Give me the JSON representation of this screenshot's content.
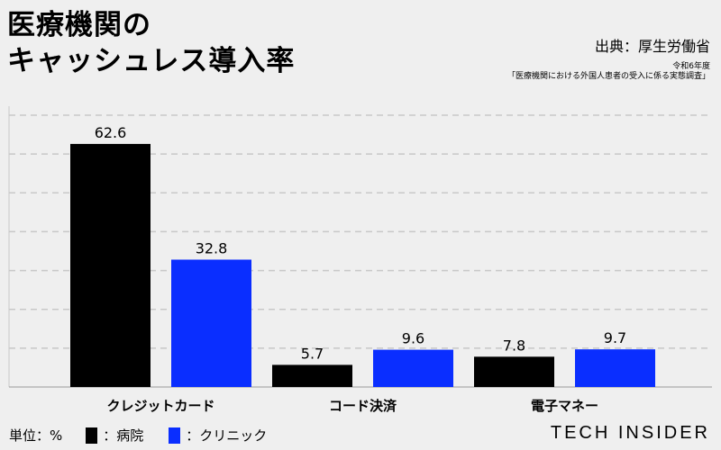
{
  "title_lines": [
    "医療機関の",
    "キャッシュレス導入率"
  ],
  "source": {
    "main": "出典：厚生労働省",
    "year": "令和6年度",
    "survey": "「医療機関における外国人患者の受入に係る実態調査」"
  },
  "legend": {
    "unit": "単位：%",
    "items": [
      {
        "label": "：病院",
        "color": "#000000"
      },
      {
        "label": "：クリニック",
        "color": "#0a2eff"
      }
    ]
  },
  "logo": "TECH INSIDER",
  "chart_data": {
    "type": "bar",
    "categories": [
      "クレジットカード",
      "コード決済",
      "電子マネー"
    ],
    "series": [
      {
        "name": "病院",
        "color": "#000000",
        "values": [
          62.6,
          5.7,
          7.8
        ]
      },
      {
        "name": "クリニック",
        "color": "#0a2eff",
        "values": [
          32.8,
          9.6,
          9.7
        ]
      }
    ],
    "ylim": [
      0,
      70
    ],
    "grid": true,
    "grid_step": 10,
    "legend_position": "bottom-left"
  }
}
